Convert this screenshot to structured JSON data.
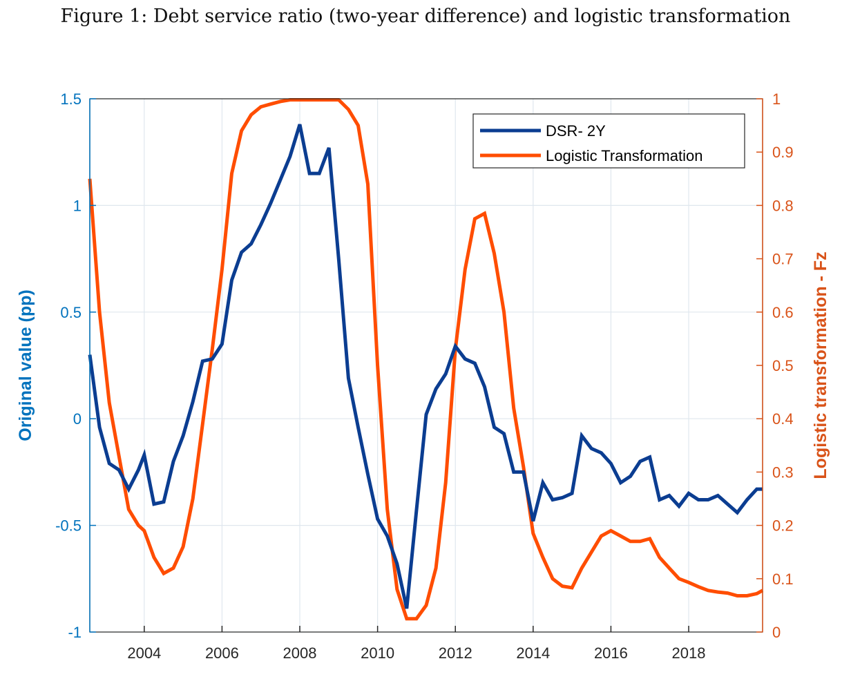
{
  "figure": {
    "caption": "Figure 1: Debt service ratio (two-year difference) and logistic transformation"
  },
  "colors": {
    "left_axis": "#0072BD",
    "right_axis": "#D95319",
    "series_dsr": "#0B3D91",
    "series_logistic": "#FF4D00",
    "grid": "#dfe7ee"
  },
  "chart_data": {
    "type": "line",
    "xlim": [
      2002.6,
      2019.9
    ],
    "x_ticks": [
      2004,
      2006,
      2008,
      2010,
      2012,
      2014,
      2016,
      2018
    ],
    "x_tick_labels": [
      "2004",
      "2006",
      "2008",
      "2010",
      "2012",
      "2014",
      "2016",
      "2018"
    ],
    "grid": true,
    "legend_position": "top-right",
    "y_left": {
      "label": "Original value (pp)",
      "lim": [
        -1,
        1.5
      ],
      "ticks": [
        -1,
        -0.5,
        0,
        0.5,
        1,
        1.5
      ],
      "tick_labels": [
        "-1",
        "-0.5",
        "0",
        "0.5",
        "1",
        "1.5"
      ]
    },
    "y_right": {
      "label": "Logistic transformation - Fz",
      "lim": [
        0,
        1
      ],
      "ticks": [
        0,
        0.1,
        0.2,
        0.3,
        0.4,
        0.5,
        0.6,
        0.7,
        0.8,
        0.9,
        1
      ],
      "tick_labels": [
        "0",
        "0.1",
        "0.2",
        "0.3",
        "0.4",
        "0.5",
        "0.6",
        "0.7",
        "0.8",
        "0.9",
        "1"
      ]
    },
    "series": [
      {
        "name": "DSR- 2Y",
        "axis": "left",
        "x": [
          2002.6,
          2002.85,
          2003.1,
          2003.35,
          2003.6,
          2003.85,
          2004.0,
          2004.25,
          2004.5,
          2004.75,
          2005.0,
          2005.25,
          2005.5,
          2005.75,
          2006.0,
          2006.25,
          2006.5,
          2006.75,
          2007.0,
          2007.25,
          2007.5,
          2007.75,
          2008.0,
          2008.25,
          2008.5,
          2008.75,
          2009.0,
          2009.25,
          2009.5,
          2009.75,
          2010.0,
          2010.25,
          2010.5,
          2010.75,
          2011.0,
          2011.25,
          2011.5,
          2011.75,
          2012.0,
          2012.25,
          2012.5,
          2012.75,
          2013.0,
          2013.25,
          2013.5,
          2013.75,
          2014.0,
          2014.25,
          2014.5,
          2014.75,
          2015.0,
          2015.25,
          2015.5,
          2015.75,
          2016.0,
          2016.25,
          2016.5,
          2016.75,
          2017.0,
          2017.25,
          2017.5,
          2017.75,
          2018.0,
          2018.25,
          2018.5,
          2018.75,
          2019.0,
          2019.25,
          2019.5,
          2019.75,
          2019.9
        ],
        "y": [
          0.3,
          -0.04,
          -0.21,
          -0.24,
          -0.33,
          -0.24,
          -0.17,
          -0.4,
          -0.39,
          -0.2,
          -0.08,
          0.08,
          0.27,
          0.28,
          0.35,
          0.65,
          0.78,
          0.82,
          0.91,
          1.01,
          1.12,
          1.23,
          1.38,
          1.15,
          1.15,
          1.27,
          0.75,
          0.19,
          -0.04,
          -0.26,
          -0.47,
          -0.55,
          -0.68,
          -0.89,
          -0.43,
          0.02,
          0.14,
          0.21,
          0.34,
          0.28,
          0.26,
          0.15,
          -0.04,
          -0.07,
          -0.25,
          -0.25,
          -0.48,
          -0.3,
          -0.38,
          -0.37,
          -0.35,
          -0.08,
          -0.14,
          -0.16,
          -0.21,
          -0.3,
          -0.27,
          -0.2,
          -0.18,
          -0.38,
          -0.36,
          -0.41,
          -0.35,
          -0.38,
          -0.38,
          -0.36,
          -0.4,
          -0.44,
          -0.38,
          -0.33,
          -0.33
        ]
      },
      {
        "name": "Logistic Transformation",
        "axis": "right",
        "x": [
          2002.6,
          2002.85,
          2003.1,
          2003.35,
          2003.6,
          2003.85,
          2004.0,
          2004.25,
          2004.5,
          2004.75,
          2005.0,
          2005.25,
          2005.5,
          2005.75,
          2006.0,
          2006.25,
          2006.5,
          2006.75,
          2007.0,
          2007.25,
          2007.5,
          2007.75,
          2008.0,
          2008.25,
          2008.5,
          2008.75,
          2009.0,
          2009.25,
          2009.5,
          2009.75,
          2010.0,
          2010.25,
          2010.5,
          2010.75,
          2011.0,
          2011.25,
          2011.5,
          2011.75,
          2012.0,
          2012.25,
          2012.5,
          2012.75,
          2013.0,
          2013.25,
          2013.5,
          2013.75,
          2014.0,
          2014.25,
          2014.5,
          2014.75,
          2015.0,
          2015.25,
          2015.5,
          2015.75,
          2016.0,
          2016.25,
          2016.5,
          2016.75,
          2017.0,
          2017.25,
          2017.5,
          2017.75,
          2018.0,
          2018.25,
          2018.5,
          2018.75,
          2019.0,
          2019.25,
          2019.5,
          2019.75,
          2019.9
        ],
        "y": [
          0.85,
          0.6,
          0.43,
          0.33,
          0.23,
          0.2,
          0.19,
          0.14,
          0.11,
          0.12,
          0.16,
          0.25,
          0.39,
          0.53,
          0.68,
          0.86,
          0.94,
          0.97,
          0.985,
          0.99,
          0.995,
          0.998,
          0.998,
          0.998,
          0.998,
          0.998,
          0.998,
          0.98,
          0.95,
          0.84,
          0.5,
          0.23,
          0.08,
          0.025,
          0.025,
          0.05,
          0.12,
          0.28,
          0.53,
          0.68,
          0.775,
          0.785,
          0.71,
          0.6,
          0.42,
          0.31,
          0.185,
          0.14,
          0.1,
          0.086,
          0.083,
          0.12,
          0.15,
          0.18,
          0.19,
          0.18,
          0.17,
          0.17,
          0.175,
          0.14,
          0.12,
          0.1,
          0.093,
          0.085,
          0.078,
          0.075,
          0.073,
          0.068,
          0.068,
          0.072,
          0.078
        ]
      }
    ]
  }
}
